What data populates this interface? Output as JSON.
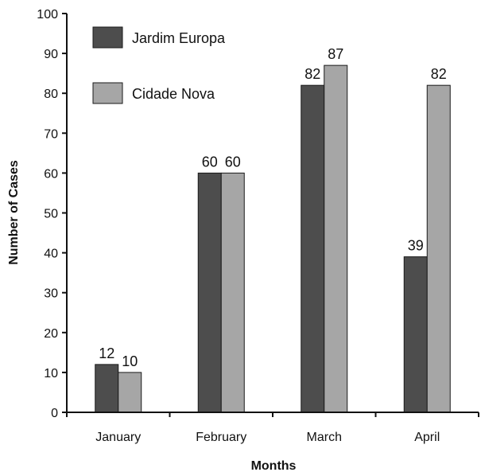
{
  "chart_data": {
    "type": "bar",
    "title": "",
    "xlabel": "Months",
    "ylabel": "Number of Cases",
    "categories": [
      "January",
      "February",
      "March",
      "April"
    ],
    "series": [
      {
        "name": "Jardim Europa",
        "values": [
          12,
          60,
          82,
          39
        ],
        "color": "#4d4d4d"
      },
      {
        "name": "Cidade Nova",
        "values": [
          10,
          60,
          87,
          82
        ],
        "color": "#a6a6a6"
      }
    ],
    "ylim": [
      0,
      100
    ],
    "yticks": [
      "0",
      "10",
      "20",
      "30",
      "40",
      "50",
      "60",
      "70",
      "80",
      "90",
      "100"
    ],
    "grid": false,
    "legend": "top-left",
    "data_labels": true
  }
}
